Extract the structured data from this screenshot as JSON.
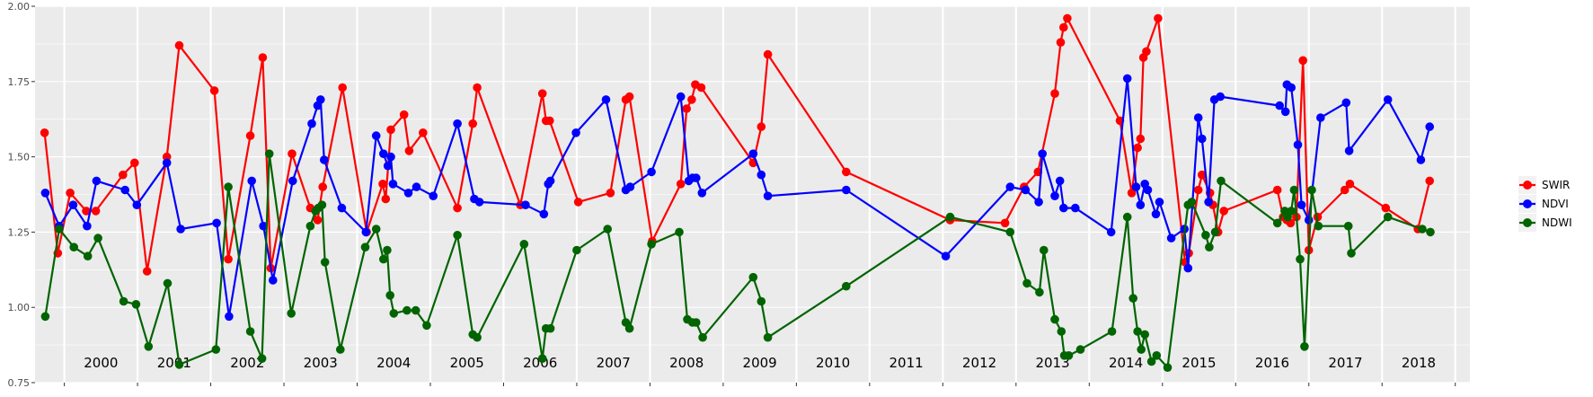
{
  "chart_data": {
    "type": "line",
    "ylim": [
      0.75,
      2.0
    ],
    "xlim": [
      1999.6,
      2019.2
    ],
    "y_ticks": [
      "0.75",
      "1.00",
      "1.25",
      "1.50",
      "1.75",
      "2.00"
    ],
    "year_labels": [
      "2000",
      "2001",
      "2002",
      "2003",
      "2004",
      "2005",
      "2006",
      "2007",
      "2008",
      "2009",
      "2010",
      "2011",
      "2012",
      "2013",
      "2014",
      "2015",
      "2016",
      "2017",
      "2018"
    ],
    "grid": true,
    "legend_position": "right",
    "series": [
      {
        "name": "SWIR",
        "color": "#ff0000",
        "points": [
          [
            1999.73,
            1.58
          ],
          [
            1999.91,
            1.18
          ],
          [
            2000.08,
            1.38
          ],
          [
            2000.3,
            1.32
          ],
          [
            2000.43,
            1.32
          ],
          [
            2000.8,
            1.44
          ],
          [
            2000.96,
            1.48
          ],
          [
            2001.13,
            1.12
          ],
          [
            2001.4,
            1.5
          ],
          [
            2001.57,
            1.87
          ],
          [
            2002.05,
            1.72
          ],
          [
            2002.24,
            1.16
          ],
          [
            2002.54,
            1.57
          ],
          [
            2002.71,
            1.83
          ],
          [
            2002.82,
            1.13
          ],
          [
            2003.11,
            1.51
          ],
          [
            2003.36,
            1.33
          ],
          [
            2003.46,
            1.29
          ],
          [
            2003.53,
            1.4
          ],
          [
            2003.8,
            1.73
          ],
          [
            2004.13,
            1.25
          ],
          [
            2004.35,
            1.41
          ],
          [
            2004.39,
            1.36
          ],
          [
            2004.46,
            1.59
          ],
          [
            2004.64,
            1.64
          ],
          [
            2004.71,
            1.52
          ],
          [
            2004.9,
            1.58
          ],
          [
            2005.37,
            1.33
          ],
          [
            2005.58,
            1.61
          ],
          [
            2005.64,
            1.73
          ],
          [
            2006.23,
            1.34
          ],
          [
            2006.53,
            1.71
          ],
          [
            2006.58,
            1.62
          ],
          [
            2006.63,
            1.62
          ],
          [
            2007.02,
            1.35
          ],
          [
            2007.46,
            1.38
          ],
          [
            2007.67,
            1.69
          ],
          [
            2007.72,
            1.7
          ],
          [
            2008.03,
            1.22
          ],
          [
            2008.42,
            1.41
          ],
          [
            2008.5,
            1.66
          ],
          [
            2008.57,
            1.69
          ],
          [
            2008.62,
            1.74
          ],
          [
            2008.7,
            1.73
          ],
          [
            2009.41,
            1.48
          ],
          [
            2009.52,
            1.6
          ],
          [
            2009.61,
            1.84
          ],
          [
            2010.68,
            1.45
          ],
          [
            2012.1,
            1.29
          ],
          [
            2012.85,
            1.28
          ],
          [
            2013.11,
            1.4
          ],
          [
            2013.3,
            1.45
          ],
          [
            2013.53,
            1.71
          ],
          [
            2013.61,
            1.88
          ],
          [
            2013.65,
            1.93
          ],
          [
            2013.7,
            1.96
          ],
          [
            2014.42,
            1.62
          ],
          [
            2014.58,
            1.38
          ],
          [
            2014.66,
            1.53
          ],
          [
            2014.7,
            1.56
          ],
          [
            2014.74,
            1.83
          ],
          [
            2014.78,
            1.85
          ],
          [
            2014.94,
            1.96
          ],
          [
            2015.31,
            1.15
          ],
          [
            2015.36,
            1.18
          ],
          [
            2015.49,
            1.39
          ],
          [
            2015.54,
            1.44
          ],
          [
            2015.65,
            1.38
          ],
          [
            2015.69,
            1.34
          ],
          [
            2015.76,
            1.25
          ],
          [
            2015.84,
            1.32
          ],
          [
            2016.57,
            1.39
          ],
          [
            2016.65,
            1.3
          ],
          [
            2016.7,
            1.29
          ],
          [
            2016.75,
            1.28
          ],
          [
            2016.83,
            1.3
          ],
          [
            2016.92,
            1.82
          ],
          [
            2017.0,
            1.19
          ],
          [
            2017.12,
            1.3
          ],
          [
            2017.49,
            1.39
          ],
          [
            2017.56,
            1.41
          ],
          [
            2018.05,
            1.33
          ],
          [
            2018.49,
            1.26
          ],
          [
            2018.65,
            1.42
          ]
        ]
      },
      {
        "name": "NDVI",
        "color": "#0000ff",
        "points": [
          [
            1999.74,
            1.38
          ],
          [
            1999.93,
            1.27
          ],
          [
            2000.12,
            1.34
          ],
          [
            2000.31,
            1.27
          ],
          [
            2000.44,
            1.42
          ],
          [
            2000.83,
            1.39
          ],
          [
            2000.99,
            1.34
          ],
          [
            2001.4,
            1.48
          ],
          [
            2001.59,
            1.26
          ],
          [
            2002.08,
            1.28
          ],
          [
            2002.25,
            0.97
          ],
          [
            2002.56,
            1.42
          ],
          [
            2002.72,
            1.27
          ],
          [
            2002.85,
            1.09
          ],
          [
            2003.12,
            1.42
          ],
          [
            2003.38,
            1.61
          ],
          [
            2003.46,
            1.67
          ],
          [
            2003.5,
            1.69
          ],
          [
            2003.55,
            1.49
          ],
          [
            2003.79,
            1.33
          ],
          [
            2004.12,
            1.25
          ],
          [
            2004.26,
            1.57
          ],
          [
            2004.36,
            1.51
          ],
          [
            2004.42,
            1.47
          ],
          [
            2004.46,
            1.5
          ],
          [
            2004.49,
            1.41
          ],
          [
            2004.7,
            1.38
          ],
          [
            2004.81,
            1.4
          ],
          [
            2005.04,
            1.37
          ],
          [
            2005.37,
            1.61
          ],
          [
            2005.6,
            1.36
          ],
          [
            2005.67,
            1.35
          ],
          [
            2006.3,
            1.34
          ],
          [
            2006.55,
            1.31
          ],
          [
            2006.61,
            1.41
          ],
          [
            2006.64,
            1.42
          ],
          [
            2006.99,
            1.58
          ],
          [
            2007.4,
            1.69
          ],
          [
            2007.67,
            1.39
          ],
          [
            2007.73,
            1.4
          ],
          [
            2008.02,
            1.45
          ],
          [
            2008.42,
            1.7
          ],
          [
            2008.53,
            1.42
          ],
          [
            2008.58,
            1.43
          ],
          [
            2008.63,
            1.43
          ],
          [
            2008.71,
            1.38
          ],
          [
            2009.41,
            1.51
          ],
          [
            2009.52,
            1.44
          ],
          [
            2009.61,
            1.37
          ],
          [
            2010.68,
            1.39
          ],
          [
            2012.04,
            1.17
          ],
          [
            2012.92,
            1.4
          ],
          [
            2013.13,
            1.39
          ],
          [
            2013.31,
            1.35
          ],
          [
            2013.36,
            1.51
          ],
          [
            2013.53,
            1.37
          ],
          [
            2013.6,
            1.42
          ],
          [
            2013.65,
            1.33
          ],
          [
            2013.81,
            1.33
          ],
          [
            2014.3,
            1.25
          ],
          [
            2014.52,
            1.76
          ],
          [
            2014.64,
            1.4
          ],
          [
            2014.7,
            1.34
          ],
          [
            2014.76,
            1.41
          ],
          [
            2014.8,
            1.39
          ],
          [
            2014.91,
            1.31
          ],
          [
            2014.96,
            1.35
          ],
          [
            2015.12,
            1.23
          ],
          [
            2015.3,
            1.26
          ],
          [
            2015.35,
            1.13
          ],
          [
            2015.49,
            1.63
          ],
          [
            2015.54,
            1.56
          ],
          [
            2015.63,
            1.35
          ],
          [
            2015.71,
            1.69
          ],
          [
            2015.79,
            1.7
          ],
          [
            2016.6,
            1.67
          ],
          [
            2016.68,
            1.65
          ],
          [
            2016.7,
            1.74
          ],
          [
            2016.76,
            1.73
          ],
          [
            2016.85,
            1.54
          ],
          [
            2016.9,
            1.34
          ],
          [
            2017.0,
            1.29
          ],
          [
            2017.16,
            1.63
          ],
          [
            2017.51,
            1.68
          ],
          [
            2017.55,
            1.52
          ],
          [
            2018.08,
            1.69
          ],
          [
            2018.53,
            1.49
          ],
          [
            2018.65,
            1.6
          ]
        ]
      },
      {
        "name": "NDWI",
        "color": "#006400",
        "points": [
          [
            1999.74,
            0.97
          ],
          [
            1999.93,
            1.26
          ],
          [
            2000.13,
            1.2
          ],
          [
            2000.32,
            1.17
          ],
          [
            2000.46,
            1.23
          ],
          [
            2000.81,
            1.02
          ],
          [
            2000.98,
            1.01
          ],
          [
            2001.15,
            0.87
          ],
          [
            2001.41,
            1.08
          ],
          [
            2001.57,
            0.81
          ],
          [
            2002.07,
            0.86
          ],
          [
            2002.24,
            1.4
          ],
          [
            2002.54,
            0.92
          ],
          [
            2002.7,
            0.83
          ],
          [
            2002.8,
            1.51
          ],
          [
            2003.1,
            0.98
          ],
          [
            2003.36,
            1.27
          ],
          [
            2003.43,
            1.32
          ],
          [
            2003.47,
            1.33
          ],
          [
            2003.52,
            1.34
          ],
          [
            2003.56,
            1.15
          ],
          [
            2003.77,
            0.86
          ],
          [
            2004.11,
            1.2
          ],
          [
            2004.26,
            1.26
          ],
          [
            2004.36,
            1.16
          ],
          [
            2004.41,
            1.19
          ],
          [
            2004.45,
            1.04
          ],
          [
            2004.5,
            0.98
          ],
          [
            2004.68,
            0.99
          ],
          [
            2004.8,
            0.99
          ],
          [
            2004.95,
            0.94
          ],
          [
            2005.37,
            1.24
          ],
          [
            2005.58,
            0.91
          ],
          [
            2005.64,
            0.9
          ],
          [
            2006.28,
            1.21
          ],
          [
            2006.53,
            0.83
          ],
          [
            2006.58,
            0.93
          ],
          [
            2006.64,
            0.93
          ],
          [
            2007.0,
            1.19
          ],
          [
            2007.42,
            1.26
          ],
          [
            2007.67,
            0.95
          ],
          [
            2007.72,
            0.93
          ],
          [
            2008.02,
            1.21
          ],
          [
            2008.4,
            1.25
          ],
          [
            2008.51,
            0.96
          ],
          [
            2008.58,
            0.95
          ],
          [
            2008.63,
            0.95
          ],
          [
            2008.72,
            0.9
          ],
          [
            2009.41,
            1.1
          ],
          [
            2009.52,
            1.02
          ],
          [
            2009.61,
            0.9
          ],
          [
            2010.68,
            1.07
          ],
          [
            2012.1,
            1.3
          ],
          [
            2012.92,
            1.25
          ],
          [
            2013.15,
            1.08
          ],
          [
            2013.32,
            1.05
          ],
          [
            2013.38,
            1.19
          ],
          [
            2013.53,
            0.96
          ],
          [
            2013.62,
            0.92
          ],
          [
            2013.66,
            0.84
          ],
          [
            2013.72,
            0.84
          ],
          [
            2013.88,
            0.86
          ],
          [
            2014.31,
            0.92
          ],
          [
            2014.52,
            1.3
          ],
          [
            2014.6,
            1.03
          ],
          [
            2014.66,
            0.92
          ],
          [
            2014.71,
            0.86
          ],
          [
            2014.76,
            0.91
          ],
          [
            2014.85,
            0.82
          ],
          [
            2014.92,
            0.84
          ],
          [
            2015.07,
            0.8
          ],
          [
            2015.35,
            1.34
          ],
          [
            2015.4,
            1.35
          ],
          [
            2015.59,
            1.24
          ],
          [
            2015.64,
            1.2
          ],
          [
            2015.72,
            1.25
          ],
          [
            2015.8,
            1.42
          ],
          [
            2016.57,
            1.28
          ],
          [
            2016.67,
            1.32
          ],
          [
            2016.71,
            1.3
          ],
          [
            2016.76,
            1.32
          ],
          [
            2016.8,
            1.39
          ],
          [
            2016.88,
            1.16
          ],
          [
            2016.94,
            0.87
          ],
          [
            2017.04,
            1.39
          ],
          [
            2017.13,
            1.27
          ],
          [
            2017.54,
            1.27
          ],
          [
            2017.58,
            1.18
          ],
          [
            2018.08,
            1.3
          ],
          [
            2018.55,
            1.26
          ],
          [
            2018.66,
            1.25
          ]
        ]
      }
    ]
  }
}
